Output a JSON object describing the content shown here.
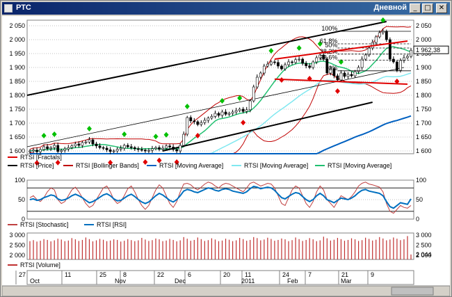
{
  "window": {
    "title": "РТС",
    "mode": "Дневной",
    "minimize_glyph": "_",
    "maximize_glyph": "□",
    "close_glyph": "✕"
  },
  "colors": {
    "price": "#000000",
    "candle_up": "#ffffff",
    "candle_down": "#000000",
    "fractal_up": "#00c000",
    "fractal_down": "#e00000",
    "bollinger": "#c00000",
    "ma_blue": "#0060c0",
    "ma_cyan": "#80e8f0",
    "ma_green": "#20c070",
    "channel": "#000000",
    "stochastic": "#c04040",
    "rsi": "#0070c0",
    "volume": "#c03030",
    "grid": "#c0c0c0"
  },
  "chart_data": [
    {
      "type": "line",
      "panel": "price",
      "yticks": [
        "2 050",
        "2 000",
        "1 950",
        "1 900",
        "1 850",
        "1 800",
        "1 750",
        "1 700",
        "1 650",
        "1 600"
      ],
      "ylim": [
        1590,
        2070
      ],
      "ytick_values": [
        2050,
        2000,
        1950,
        1900,
        1850,
        1800,
        1750,
        1700,
        1650,
        1600
      ],
      "last_value_label": "1 962,38",
      "fib_labels": [
        "100%",
        "61,8%",
        "50%",
        "38,2%",
        "23,6%",
        "0%"
      ],
      "fib_levels": [
        2030,
        1985,
        1970,
        1948,
        1926,
        1888
      ],
      "legend": [
        {
          "name": "RTSI [Fractals]",
          "color": "#e00000"
        },
        {
          "name": "RTSI [Price]",
          "color": "#000000"
        },
        {
          "name": "RTSI [Bollinger Bands]",
          "color": "#c00000"
        },
        {
          "name": "RTSI [Moving Average]",
          "color": "#0060c0"
        },
        {
          "name": "RTSI [Moving Average]",
          "color": "#80e8f0"
        },
        {
          "name": "RTSI [Moving Average]",
          "color": "#20c070"
        }
      ],
      "close": [
        1600,
        1603,
        1597,
        1605,
        1615,
        1608,
        1612,
        1620,
        1598,
        1602,
        1607,
        1612,
        1618,
        1625,
        1620,
        1630,
        1632,
        1640,
        1625,
        1618,
        1612,
        1610,
        1604,
        1598,
        1600,
        1606,
        1610,
        1620,
        1615,
        1612,
        1608,
        1605,
        1603,
        1600,
        1602,
        1608,
        1612,
        1606,
        1610,
        1618,
        1614,
        1605,
        1600,
        1620,
        1660,
        1720,
        1708,
        1705,
        1695,
        1702,
        1710,
        1718,
        1724,
        1735,
        1728,
        1740,
        1732,
        1735,
        1740,
        1745,
        1750,
        1742,
        1748,
        1780,
        1830,
        1865,
        1880,
        1905,
        1912,
        1920,
        1918,
        1905,
        1895,
        1910,
        1920,
        1918,
        1928,
        1930,
        1915,
        1906,
        1900,
        1920,
        1935,
        1945,
        1930,
        1880,
        1895,
        1870,
        1855,
        1880,
        1868,
        1875,
        1870,
        1885,
        1900,
        1930,
        1945,
        1970,
        1990,
        2010,
        2025,
        2030,
        2000,
        1930,
        1920,
        1890,
        1925,
        1935,
        1940,
        1962
      ]
    },
    {
      "type": "line",
      "panel": "oscillator",
      "yticks": [
        "100",
        "50",
        "0"
      ],
      "ylim": [
        0,
        100
      ],
      "levels": [
        80,
        20
      ],
      "legend": [
        {
          "name": "RTSI [Stochastic]",
          "color": "#c04040"
        },
        {
          "name": "RTSI [RSI]",
          "color": "#0070c0"
        }
      ],
      "stochastic": [
        55,
        60,
        50,
        45,
        55,
        70,
        80,
        75,
        50,
        40,
        45,
        60,
        75,
        82,
        70,
        55,
        40,
        30,
        35,
        50,
        65,
        80,
        85,
        70,
        50,
        40,
        45,
        60,
        78,
        85,
        70,
        50,
        35,
        25,
        35,
        55,
        75,
        88,
        80,
        60,
        40,
        30,
        45,
        70,
        90,
        92,
        88,
        80,
        75,
        82,
        90,
        95,
        92,
        85,
        80,
        88,
        92,
        90,
        85,
        80,
        75,
        70,
        80,
        92,
        95,
        90,
        85,
        88,
        92,
        90,
        80,
        60,
        40,
        35,
        55,
        75,
        85,
        80,
        60,
        40,
        30,
        45,
        70,
        85,
        75,
        50,
        40,
        30,
        45,
        60,
        55,
        50,
        58,
        70,
        85,
        92,
        95,
        90,
        88,
        85,
        82,
        70,
        40,
        20,
        15,
        25,
        35,
        30,
        28,
        35
      ],
      "rsi": [
        50,
        52,
        48,
        50,
        55,
        58,
        62,
        60,
        52,
        48,
        50,
        54,
        60,
        64,
        60,
        55,
        48,
        42,
        45,
        50,
        56,
        62,
        65,
        60,
        52,
        47,
        48,
        54,
        60,
        64,
        58,
        50,
        44,
        40,
        44,
        52,
        60,
        66,
        62,
        55,
        48,
        44,
        50,
        60,
        72,
        76,
        74,
        70,
        68,
        72,
        76,
        80,
        78,
        74,
        72,
        76,
        78,
        76,
        72,
        70,
        68,
        66,
        70,
        78,
        84,
        82,
        78,
        80,
        82,
        80,
        74,
        64,
        55,
        52,
        58,
        64,
        68,
        66,
        58,
        50,
        45,
        50,
        60,
        66,
        60,
        50,
        46,
        42,
        48,
        54,
        52,
        50,
        54,
        60,
        68,
        74,
        76,
        72,
        70,
        68,
        66,
        60,
        45,
        32,
        28,
        35,
        42,
        40,
        38,
        52
      ]
    },
    {
      "type": "bar",
      "panel": "volume",
      "yticks": [
        "3 000",
        "2 500",
        "2 000"
      ],
      "ylim": [
        1800,
        3100
      ],
      "last_value_label": "2 044",
      "legend": [
        {
          "name": "RTSI [Volume]",
          "color": "#c03030"
        }
      ],
      "values": [
        2700,
        2750,
        2680,
        2720,
        2800,
        2760,
        2690,
        2740,
        2820,
        2780,
        2700,
        2730,
        2850,
        2790,
        2710,
        2760,
        2880,
        2800,
        2690,
        2740,
        2810,
        2770,
        2700,
        2730,
        2790,
        2760,
        2680,
        2720,
        2800,
        2750,
        2700,
        2740,
        2860,
        2780,
        2710,
        2750,
        2830,
        2790,
        2700,
        2730,
        2810,
        2760,
        2690,
        2740,
        2900,
        2820,
        2720,
        2760,
        2880,
        2800,
        2710,
        2750,
        2840,
        2780,
        2700,
        2730,
        2820,
        2770,
        2700,
        2740,
        2860,
        2800,
        2720,
        2760,
        2900,
        2850,
        2740,
        2780,
        2870,
        2810,
        2720,
        2760,
        2830,
        2790,
        2700,
        2750,
        2880,
        2800,
        2710,
        2760,
        2850,
        2790,
        2700,
        2740,
        2920,
        2840,
        2730,
        2770,
        2860,
        2800,
        2720,
        2760,
        2840,
        2790,
        2710,
        2750,
        2870,
        2810,
        2730,
        2770,
        2900,
        2830,
        2740,
        2780,
        2880,
        2820,
        2750,
        2790,
        2950,
        2044
      ]
    }
  ],
  "xaxis": {
    "day_labels": [
      "27",
      "11",
      "25",
      "8",
      "22",
      "6",
      "20",
      "11",
      "24",
      "7",
      "21",
      "9"
    ],
    "month_labels": [
      "Oct",
      "Nov",
      "Dec",
      "2011",
      "Feb",
      "Mar"
    ]
  }
}
